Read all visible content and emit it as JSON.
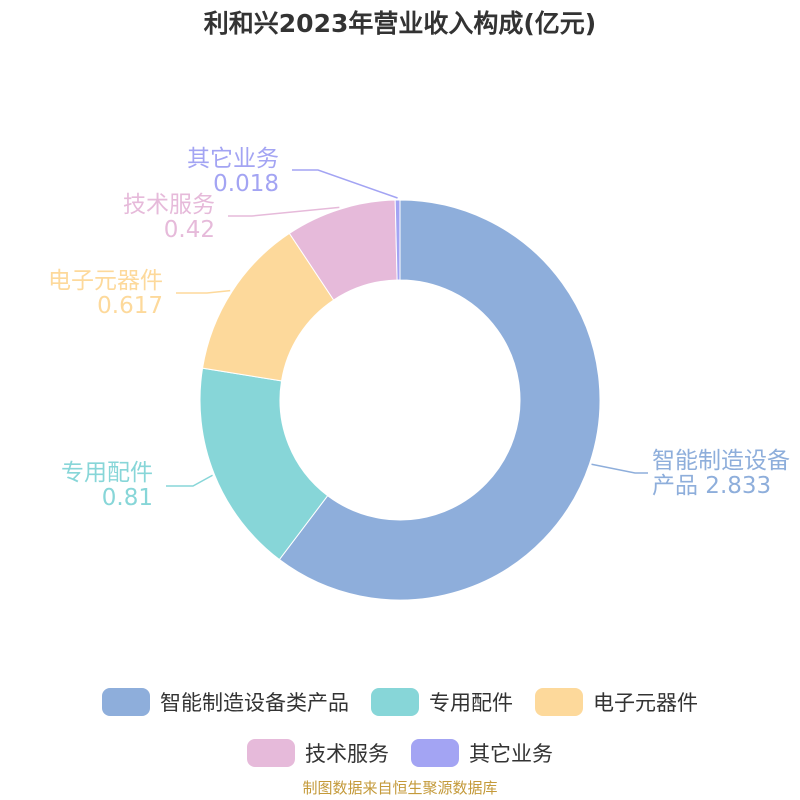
{
  "chart_data": {
    "type": "pie",
    "title": "利和兴2023年营业收入构成(亿元)",
    "categories": [
      "智能制造设备类产品",
      "专用配件",
      "电子元器件",
      "技术服务",
      "其它业务"
    ],
    "values": [
      2.833,
      0.81,
      0.617,
      0.42,
      0.018
    ],
    "value_labels": [
      "2.833",
      "0.81",
      "0.617",
      "0.42",
      "0.018"
    ],
    "colors": [
      "#8eaedb",
      "#87d6d8",
      "#fdd99b",
      "#e6bada",
      "#a3a4f3"
    ],
    "donut": true,
    "legend_position": "bottom"
  },
  "slice_labels": [
    {
      "line1": "智能制造设备",
      "line2": "产品 2.833"
    },
    {
      "line1": "专用配件",
      "line2": "0.81"
    },
    {
      "line1": "电子元器件",
      "line2": "0.617"
    },
    {
      "line1": "技术服务",
      "line2": "0.42"
    },
    {
      "line1": "其它业务",
      "line2": "0.018"
    }
  ],
  "footer": "制图数据来自恒生聚源数据库"
}
